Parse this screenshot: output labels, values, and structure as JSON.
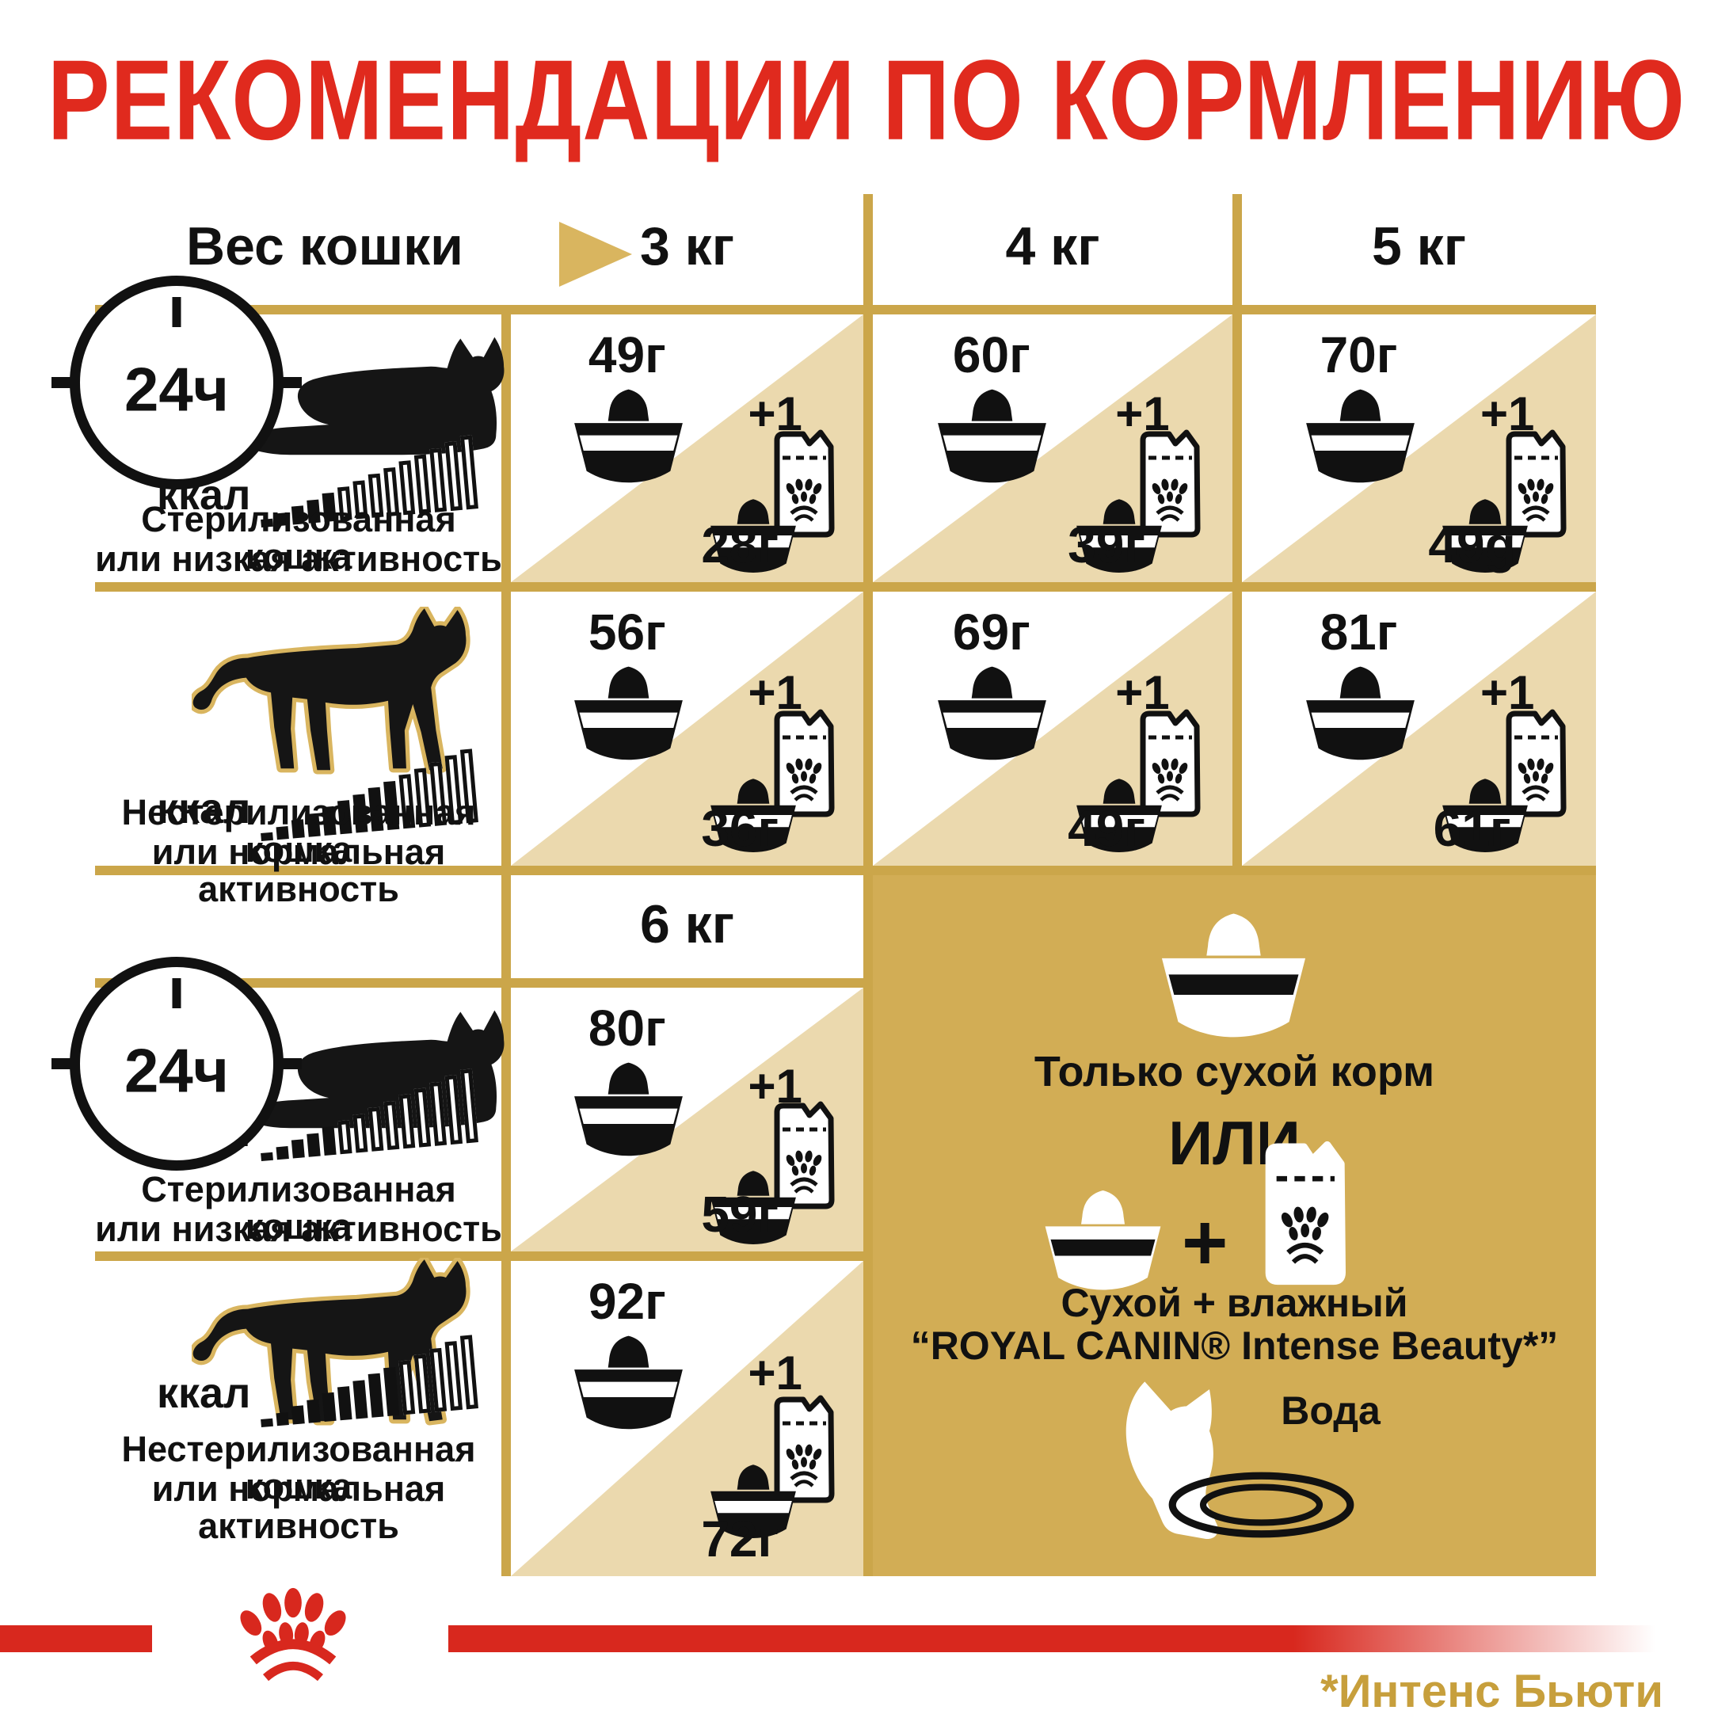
{
  "title": "РЕКОМЕНДАЦИИ ПО КОРМЛЕНИЮ",
  "table": {
    "weight_label": "Вес кошки",
    "columns": [
      "3 кг",
      "4 кг",
      "5 кг"
    ],
    "extra_column": "6 кг"
  },
  "clock_label": "24ч",
  "kcal_label": "ккал",
  "plus_one": "+1",
  "kcal": {
    "total_bars": 14
  },
  "rows": [
    {
      "label_line1": "Стерилизованная кошка",
      "label_line2": "или низкая активность",
      "cat_icon": "lying-cat",
      "kcal_filled": 5,
      "cells": [
        {
          "dry": "49г",
          "wet": "28г"
        },
        {
          "dry": "60г",
          "wet": "39г"
        },
        {
          "dry": "70г",
          "wet": "49g"
        }
      ]
    },
    {
      "label_line1": "Нестерилизованная кошка",
      "label_line2": "или нормальная активность",
      "cat_icon": "walking-cat",
      "kcal_filled": 9,
      "cells": [
        {
          "dry": "56г",
          "wet": "36г"
        },
        {
          "dry": "69г",
          "wet": "49г"
        },
        {
          "dry": "81г",
          "wet": "61г"
        }
      ]
    },
    {
      "label_line1": "Стерилизованная кошка",
      "label_line2": "или низкая активность",
      "cat_icon": "lying-cat",
      "kcal_filled": 5,
      "cells": [
        {
          "dry": "80г",
          "wet": "59г"
        }
      ]
    },
    {
      "label_line1": "Нестерилизованная кошка",
      "label_line2": "или нормальная активность",
      "cat_icon": "walking-cat",
      "kcal_filled": 9,
      "cells": [
        {
          "dry": "92г",
          "wet": "72г"
        }
      ]
    }
  ],
  "panel": {
    "dry_only_label": "Только сухой корм",
    "or_label": "ИЛИ",
    "plus_sign": "+",
    "mixed_line1": "Сухой + влажный",
    "mixed_line2": "“ROYAL CANIN® Intense Beauty*”",
    "water_label": "Вода"
  },
  "footnote": "*Интенс Бьюти",
  "icons": {
    "clock-24h-icon": "circle clock with ticks",
    "weight-arrow-icon": "gold right triangle",
    "lying-cat-icon": "black lying cat silhouette",
    "walking-cat-icon": "black walking cat silhouette with gold outline",
    "kcal-bars-icon": "ascending signal bars",
    "dry-bowl-icon": "food bowl with kibble dome",
    "wet-pouch-icon": "wet food pouch with paw print",
    "bowl-plus-pouch-icon": "small bowl in front of pouch",
    "water-cat-icon": "white cat head drinking",
    "water-bowl-rings-icon": "two black ellipse rings",
    "royal-canin-paw-logo": "red crown paw print"
  },
  "colors": {
    "title_red": "#E02A1E",
    "bar_red": "#D8281E",
    "grid_gold": "#CBA64A",
    "triangle_tan": "#EBD9AE",
    "panel_gold": "#D2AD55",
    "arrow_gold": "#D9B55F",
    "footnote_gold": "#C79F3C",
    "ink_black": "#111111"
  }
}
